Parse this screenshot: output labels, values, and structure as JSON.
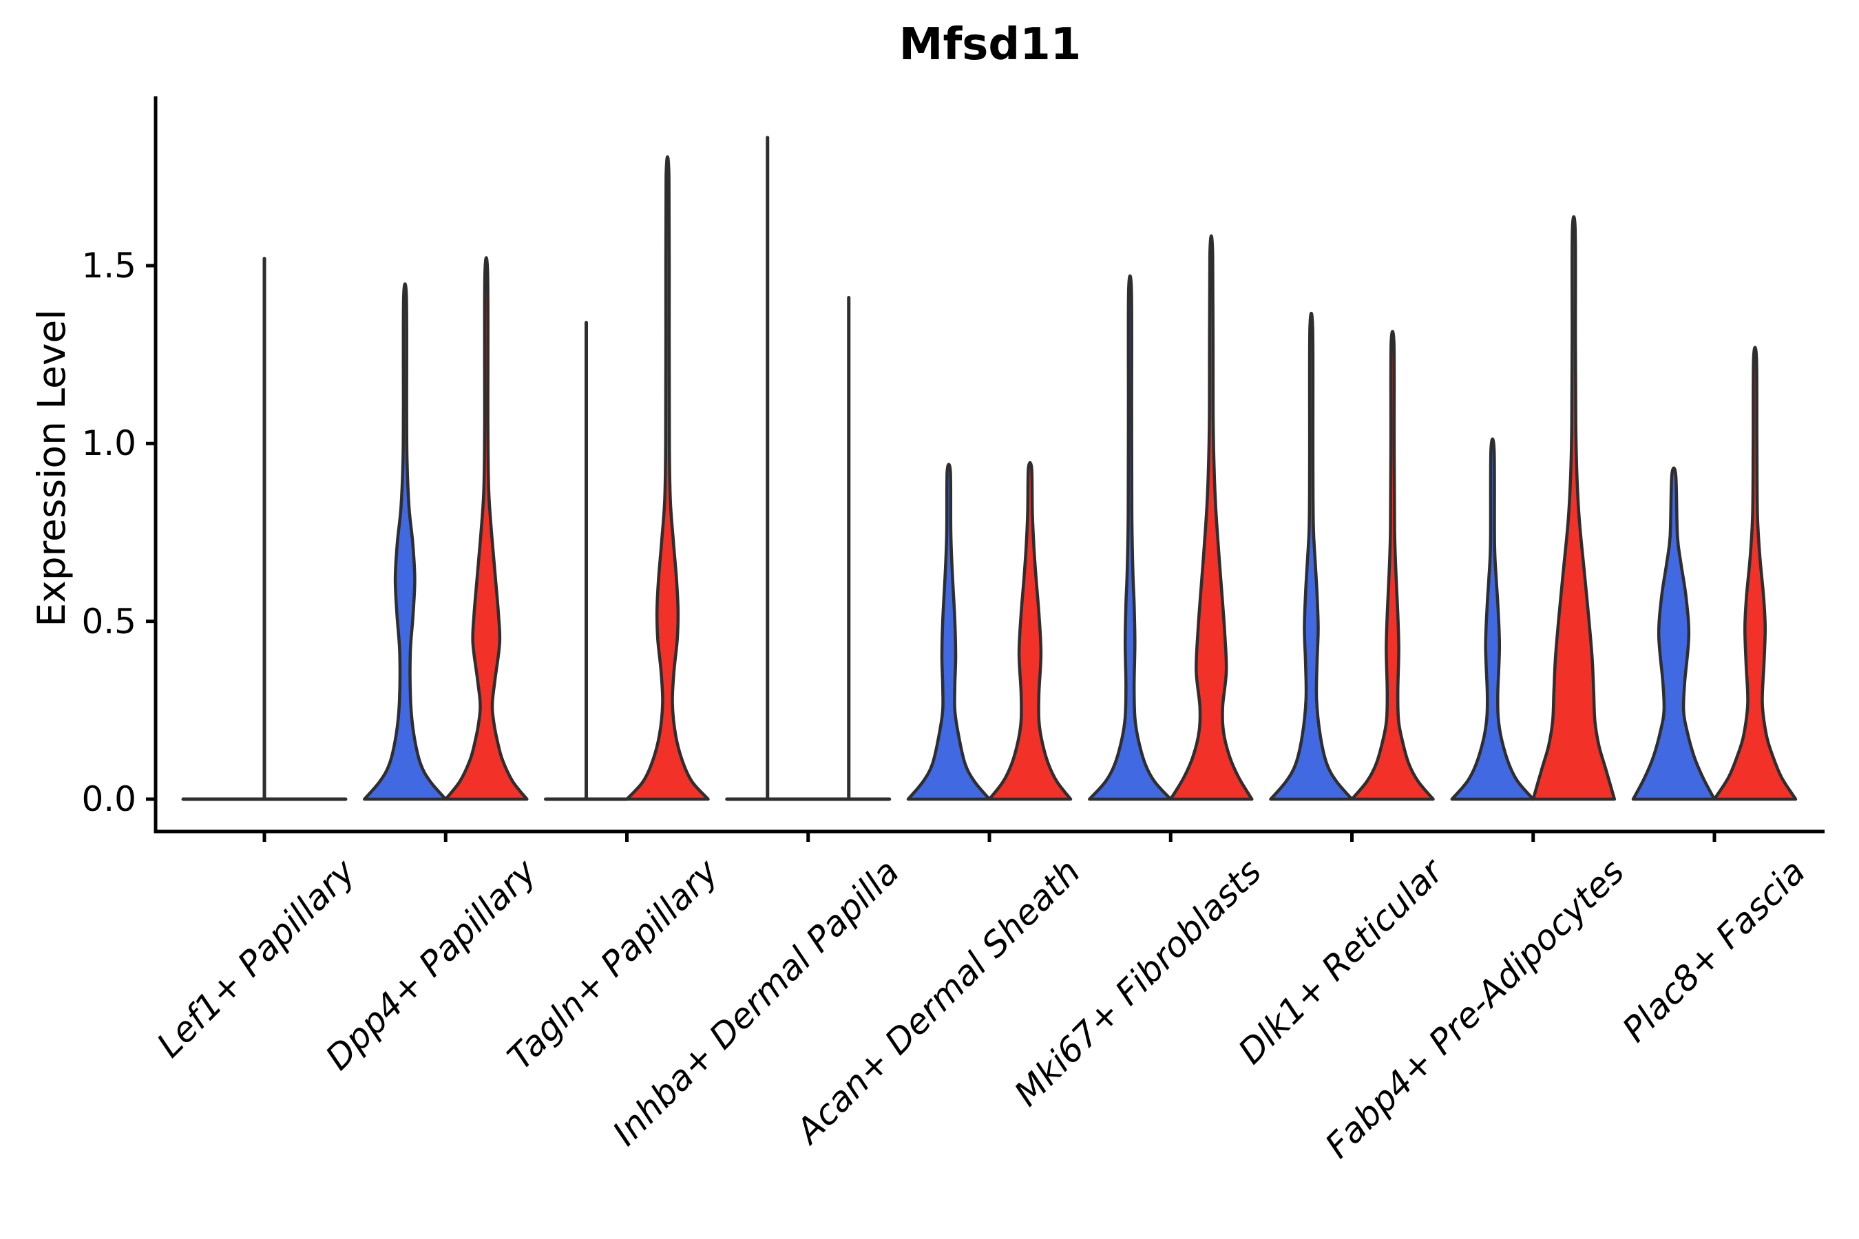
{
  "title": "Mfsd11",
  "y_axis": {
    "label": "Expression Level",
    "tick_labels": [
      "0.0",
      "0.5",
      "1.0",
      "1.5"
    ],
    "tick_values": [
      0,
      0.5,
      1.0,
      1.5
    ]
  },
  "colors": {
    "blue": "#4169E1",
    "red": "#F23128",
    "outline": "#2E2E2E",
    "axis": "#000000"
  },
  "chart_data": {
    "type": "violin",
    "title": "Mfsd11",
    "ylabel": "Expression Level",
    "ylim": [
      -0.09,
      1.98
    ],
    "grid": false,
    "legend": "none",
    "split_colors": {
      "left": "blue",
      "right": "red"
    },
    "categories": [
      "Lef1+ Papillary",
      "Dpp4+ Papillary",
      "Tagln+ Papillary",
      "Inhba+ Dermal Papilla",
      "Acan+ Dermal Sheath",
      "Mki67+ Fibroblasts",
      "Dlk1+ Reticular",
      "Fabp4+ Pre-Adipocytes",
      "Plac8+ Fascia"
    ],
    "violins": [
      {
        "category": "Lef1+ Papillary",
        "left": {
          "color": "blue",
          "shape": "collapsed",
          "max": 1.52,
          "spike_offset": 59
        },
        "right": {
          "color": "red",
          "shape": "collapsed",
          "max": 0,
          "spike_offset": 0
        }
      },
      {
        "category": "Dpp4+ Papillary",
        "left": {
          "color": "blue",
          "shape": "violin",
          "max": 1.41,
          "profile": [
            [
              0,
              1.0
            ],
            [
              0.05,
              0.62
            ],
            [
              0.1,
              0.38
            ],
            [
              0.18,
              0.22
            ],
            [
              0.27,
              0.14
            ],
            [
              0.41,
              0.13
            ],
            [
              0.52,
              0.2
            ],
            [
              0.62,
              0.24
            ],
            [
              0.72,
              0.19
            ],
            [
              0.82,
              0.1
            ],
            [
              0.95,
              0.05
            ],
            [
              1.1,
              0.04
            ],
            [
              1.41,
              0.035
            ]
          ]
        },
        "right": {
          "color": "red",
          "shape": "violin",
          "max": 1.47,
          "profile": [
            [
              0,
              1.0
            ],
            [
              0.05,
              0.65
            ],
            [
              0.11,
              0.4
            ],
            [
              0.16,
              0.28
            ],
            [
              0.22,
              0.18
            ],
            [
              0.27,
              0.15
            ],
            [
              0.34,
              0.22
            ],
            [
              0.44,
              0.33
            ],
            [
              0.52,
              0.3
            ],
            [
              0.63,
              0.22
            ],
            [
              0.75,
              0.13
            ],
            [
              0.87,
              0.06
            ],
            [
              1.05,
              0.04
            ],
            [
              1.47,
              0.035
            ]
          ]
        }
      },
      {
        "category": "Tagln+ Papillary",
        "left": {
          "color": "blue",
          "shape": "collapsed",
          "max": 1.34,
          "spike_offset": 0
        },
        "right": {
          "color": "red",
          "shape": "violin",
          "max": 1.75,
          "profile": [
            [
              0,
              1.0
            ],
            [
              0.05,
              0.6
            ],
            [
              0.11,
              0.36
            ],
            [
              0.18,
              0.2
            ],
            [
              0.27,
              0.12
            ],
            [
              0.36,
              0.16
            ],
            [
              0.45,
              0.24
            ],
            [
              0.53,
              0.26
            ],
            [
              0.62,
              0.22
            ],
            [
              0.73,
              0.14
            ],
            [
              0.84,
              0.07
            ],
            [
              1.0,
              0.045
            ],
            [
              1.3,
              0.04
            ],
            [
              1.75,
              0.035
            ]
          ]
        }
      },
      {
        "category": "Inhba+ Dermal Papilla",
        "left": {
          "color": "blue",
          "shape": "collapsed",
          "max": 1.86,
          "spike_offset": 0
        },
        "right": {
          "color": "red",
          "shape": "collapsed",
          "max": 1.41,
          "spike_offset": 0
        }
      },
      {
        "category": "Acan+ Dermal Sheath",
        "left": {
          "color": "blue",
          "shape": "violin",
          "max": 0.92,
          "profile": [
            [
              0,
              1.0
            ],
            [
              0.05,
              0.63
            ],
            [
              0.1,
              0.4
            ],
            [
              0.18,
              0.24
            ],
            [
              0.25,
              0.15
            ],
            [
              0.32,
              0.15
            ],
            [
              0.4,
              0.17
            ],
            [
              0.5,
              0.15
            ],
            [
              0.63,
              0.09
            ],
            [
              0.75,
              0.05
            ],
            [
              0.92,
              0.04
            ]
          ]
        },
        "right": {
          "color": "red",
          "shape": "violin",
          "max": 0.93,
          "profile": [
            [
              0,
              1.0
            ],
            [
              0.05,
              0.66
            ],
            [
              0.1,
              0.45
            ],
            [
              0.16,
              0.3
            ],
            [
              0.22,
              0.22
            ],
            [
              0.3,
              0.22
            ],
            [
              0.41,
              0.27
            ],
            [
              0.52,
              0.22
            ],
            [
              0.62,
              0.15
            ],
            [
              0.7,
              0.1
            ],
            [
              0.8,
              0.06
            ],
            [
              0.93,
              0.04
            ]
          ]
        }
      },
      {
        "category": "Mki67+ Fibroblasts",
        "left": {
          "color": "blue",
          "shape": "violin",
          "max": 1.43,
          "profile": [
            [
              0,
              1.0
            ],
            [
              0.05,
              0.6
            ],
            [
              0.1,
              0.37
            ],
            [
              0.17,
              0.2
            ],
            [
              0.23,
              0.12
            ],
            [
              0.32,
              0.1
            ],
            [
              0.44,
              0.12
            ],
            [
              0.55,
              0.1
            ],
            [
              0.64,
              0.07
            ],
            [
              0.8,
              0.045
            ],
            [
              1.1,
              0.04
            ],
            [
              1.43,
              0.035
            ]
          ]
        },
        "right": {
          "color": "red",
          "shape": "violin",
          "max": 1.53,
          "profile": [
            [
              0,
              1.0
            ],
            [
              0.06,
              0.68
            ],
            [
              0.12,
              0.45
            ],
            [
              0.19,
              0.3
            ],
            [
              0.26,
              0.28
            ],
            [
              0.36,
              0.37
            ],
            [
              0.47,
              0.33
            ],
            [
              0.58,
              0.26
            ],
            [
              0.7,
              0.18
            ],
            [
              0.82,
              0.11
            ],
            [
              0.93,
              0.07
            ],
            [
              1.1,
              0.045
            ],
            [
              1.53,
              0.035
            ]
          ]
        }
      },
      {
        "category": "Dlk1+ Reticular",
        "left": {
          "color": "blue",
          "shape": "violin",
          "max": 1.32,
          "profile": [
            [
              0,
              1.0
            ],
            [
              0.05,
              0.62
            ],
            [
              0.1,
              0.38
            ],
            [
              0.18,
              0.22
            ],
            [
              0.28,
              0.13
            ],
            [
              0.38,
              0.14
            ],
            [
              0.48,
              0.17
            ],
            [
              0.58,
              0.14
            ],
            [
              0.68,
              0.09
            ],
            [
              0.77,
              0.05
            ],
            [
              0.95,
              0.04
            ],
            [
              1.32,
              0.035
            ]
          ]
        },
        "right": {
          "color": "red",
          "shape": "violin",
          "max": 1.28,
          "profile": [
            [
              0,
              1.0
            ],
            [
              0.05,
              0.63
            ],
            [
              0.1,
              0.4
            ],
            [
              0.16,
              0.25
            ],
            [
              0.22,
              0.15
            ],
            [
              0.3,
              0.13
            ],
            [
              0.42,
              0.155
            ],
            [
              0.52,
              0.13
            ],
            [
              0.62,
              0.09
            ],
            [
              0.76,
              0.05
            ],
            [
              1.0,
              0.04
            ],
            [
              1.28,
              0.035
            ]
          ]
        }
      },
      {
        "category": "Fabp4+ Pre-Adipocytes",
        "left": {
          "color": "blue",
          "shape": "violin",
          "max": 0.98,
          "profile": [
            [
              0,
              1.0
            ],
            [
              0.05,
              0.62
            ],
            [
              0.1,
              0.4
            ],
            [
              0.17,
              0.22
            ],
            [
              0.23,
              0.14
            ],
            [
              0.3,
              0.13
            ],
            [
              0.43,
              0.17
            ],
            [
              0.55,
              0.13
            ],
            [
              0.62,
              0.09
            ],
            [
              0.72,
              0.05
            ],
            [
              0.98,
              0.04
            ]
          ]
        },
        "right": {
          "color": "red",
          "shape": "violin",
          "max": 1.6,
          "profile": [
            [
              0,
              1.0
            ],
            [
              0.08,
              0.8
            ],
            [
              0.15,
              0.62
            ],
            [
              0.22,
              0.52
            ],
            [
              0.3,
              0.49
            ],
            [
              0.4,
              0.45
            ],
            [
              0.52,
              0.36
            ],
            [
              0.65,
              0.25
            ],
            [
              0.78,
              0.14
            ],
            [
              0.9,
              0.08
            ],
            [
              1.05,
              0.05
            ],
            [
              1.3,
              0.04
            ],
            [
              1.6,
              0.035
            ]
          ]
        }
      },
      {
        "category": "Plac8+ Fascia",
        "left": {
          "color": "blue",
          "shape": "violin",
          "max": 0.91,
          "profile": [
            [
              0,
              1.0
            ],
            [
              0.06,
              0.72
            ],
            [
              0.12,
              0.5
            ],
            [
              0.19,
              0.33
            ],
            [
              0.25,
              0.24
            ],
            [
              0.33,
              0.27
            ],
            [
              0.46,
              0.37
            ],
            [
              0.57,
              0.3
            ],
            [
              0.66,
              0.18
            ],
            [
              0.74,
              0.09
            ],
            [
              0.91,
              0.05
            ]
          ]
        },
        "right": {
          "color": "red",
          "shape": "violin",
          "max": 1.24,
          "profile": [
            [
              0,
              1.0
            ],
            [
              0.06,
              0.66
            ],
            [
              0.12,
              0.44
            ],
            [
              0.18,
              0.28
            ],
            [
              0.27,
              0.18
            ],
            [
              0.38,
              0.22
            ],
            [
              0.48,
              0.25
            ],
            [
              0.57,
              0.21
            ],
            [
              0.68,
              0.12
            ],
            [
              0.8,
              0.06
            ],
            [
              1.0,
              0.045
            ],
            [
              1.24,
              0.035
            ]
          ]
        }
      }
    ]
  }
}
